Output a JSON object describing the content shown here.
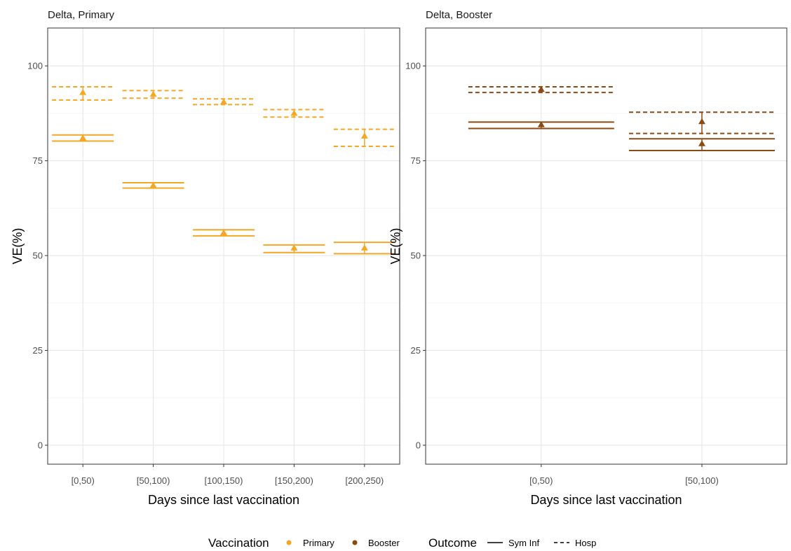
{
  "chart_data": {
    "type": "errorbar",
    "panels": [
      {
        "title": "Delta, Primary",
        "vaccination": "Primary",
        "color": "#F5A623",
        "xlabel": "Days since last vaccination",
        "ylabel": "VE(%)",
        "ylim": [
          -5,
          110
        ],
        "yticks": [
          0,
          25,
          50,
          75,
          100
        ],
        "categories": [
          "[0,50)",
          "[50,100)",
          "[100,150)",
          "[150,200)",
          "[200,250)"
        ],
        "series": [
          {
            "name": "Sym Inf",
            "values": [
              81.0,
              68.5,
              56.0,
              52.0,
              52.0
            ],
            "lower": [
              80.2,
              67.8,
              55.2,
              50.8,
              50.5
            ],
            "upper": [
              81.8,
              69.2,
              56.8,
              52.8,
              53.5
            ]
          },
          {
            "name": "Hosp",
            "values": [
              93.0,
              92.5,
              90.5,
              87.5,
              81.5
            ],
            "lower": [
              91.0,
              91.5,
              89.8,
              86.5,
              78.8
            ],
            "upper": [
              94.5,
              93.5,
              91.3,
              88.5,
              83.3
            ]
          }
        ]
      },
      {
        "title": "Delta, Booster",
        "vaccination": "Booster",
        "color": "#8B4A12",
        "xlabel": "Days since last vaccination",
        "ylabel": "VE(%)",
        "ylim": [
          -5,
          110
        ],
        "yticks": [
          0,
          25,
          50,
          75,
          100
        ],
        "categories": [
          "[0,50)",
          "[50,100)"
        ],
        "series": [
          {
            "name": "Sym Inf",
            "values": [
              84.5,
              79.5
            ],
            "lower": [
              83.5,
              77.7
            ],
            "upper": [
              85.2,
              80.8
            ]
          },
          {
            "name": "Hosp",
            "values": [
              93.8,
              85.3
            ],
            "lower": [
              93.0,
              82.2
            ],
            "upper": [
              94.5,
              87.8
            ]
          }
        ]
      }
    ],
    "grid": true,
    "legend": {
      "position": "bottom",
      "groups": [
        {
          "title": "Vaccination",
          "items": [
            {
              "label": "Primary",
              "color": "#F5A623"
            },
            {
              "label": "Booster",
              "color": "#8B4A12"
            }
          ]
        },
        {
          "title": "Outcome",
          "items": [
            {
              "label": "Sym Inf",
              "linetype": "solid"
            },
            {
              "label": "Hosp",
              "linetype": "dashed"
            }
          ]
        }
      ]
    }
  }
}
